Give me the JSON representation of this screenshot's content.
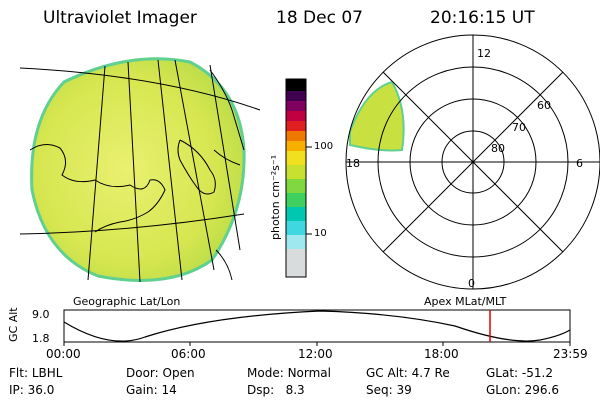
{
  "header": {
    "instrument": "Ultraviolet Imager",
    "date": "18 Dec 07",
    "time": "20:16:15 UT"
  },
  "colorbar": {
    "unit_label": "photon cm⁻²s⁻¹",
    "tick_labels": [
      "100",
      "10"
    ],
    "colors": [
      "#d0d0d0",
      "#a0e8f0",
      "#40d8e0",
      "#00c8b0",
      "#40d060",
      "#80d840",
      "#c8e030",
      "#f0e020",
      "#f8b000",
      "#f07800",
      "#e02020",
      "#c00040",
      "#800060",
      "#400050",
      "#000000"
    ]
  },
  "earth_panel": {
    "caption": "Geographic Lat/Lon",
    "colors": {
      "aurora": "#c8e040",
      "aurora_light": "#e0ee60",
      "edge": "#60d090"
    }
  },
  "polar_panel": {
    "caption": "Apex MLat/MLT",
    "mlt_labels": [
      "12",
      "18",
      "6",
      "0"
    ],
    "mlat_labels": [
      "60",
      "70",
      "80"
    ]
  },
  "altitude_plot": {
    "ylabel": "GC Alt",
    "y_ticks": [
      "9.0",
      "1.8"
    ],
    "x_ticks": [
      "00:00",
      "06:00",
      "12:00",
      "18:00",
      "23:59"
    ],
    "current_time_marker": "20:16",
    "marker_color": "#e00000"
  },
  "info": {
    "row1": [
      {
        "label": "Flt:",
        "value": "LBHL"
      },
      {
        "label": "Door:",
        "value": "Open"
      },
      {
        "label": "Mode:",
        "value": "Normal"
      },
      {
        "label": "GC Alt:",
        "value": "4.7 Re"
      },
      {
        "label": "GLat:",
        "value": "-51.2"
      }
    ],
    "row2": [
      {
        "label": "IP:",
        "value": "36.0"
      },
      {
        "label": "Gain:",
        "value": "14"
      },
      {
        "label": "Dsp:",
        "value": "8.3"
      },
      {
        "label": "Seq:",
        "value": "39"
      },
      {
        "label": "GLon:",
        "value": "296.6"
      }
    ]
  }
}
